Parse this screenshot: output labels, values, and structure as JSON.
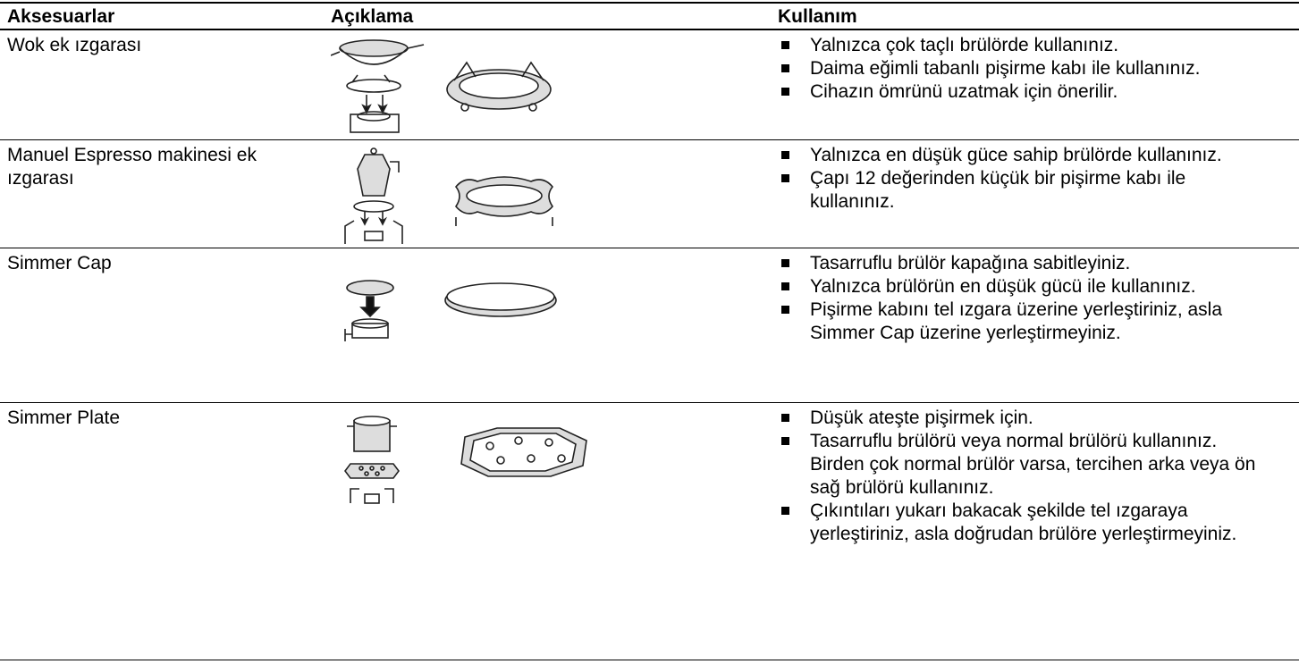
{
  "table": {
    "header": [
      "Aksesuarlar",
      "Açıklama",
      "Kullanım"
    ],
    "rows": [
      {
        "name": "Wok ek ızgarası",
        "usage": [
          "Yalnızca çok taçlı brülörde kullanınız.",
          "Daima eğimli tabanlı pişirme kabı ile kullanınız.",
          "Cihazın ömrünü uzatmak için önerilir."
        ]
      },
      {
        "name": "Manuel Espresso makinesi ek ızgarası",
        "usage": [
          "Yalnızca en düşük güce sahip brülörde kullanınız.",
          "Çapı 12 değerinden küçük bir pişirme kabı ile kullanınız."
        ]
      },
      {
        "name": "Simmer Cap",
        "usage": [
          "Tasarruflu brülör kapağına sabitleyiniz.",
          "Yalnızca brülörün en düşük gücü ile kullanınız.",
          "Pişirme kabını tel ızgara üzerine yerleştiriniz, asla Simmer Cap üzerine yerleştirmeyiniz."
        ]
      },
      {
        "name": "Simmer Plate",
        "usage": [
          "Düşük ateşte pişirmek için.",
          "Tasarruflu brülörü veya normal brülörü kullanınız. Birden çok normal brülör varsa, tercihen arka veya ön sağ brülörü kullanınız.",
          "Çıkıntıları yukarı bakacak şekilde tel ızgaraya yerleştiriniz, asla doğrudan brülöre yerleştirmeyiniz."
        ]
      }
    ]
  }
}
